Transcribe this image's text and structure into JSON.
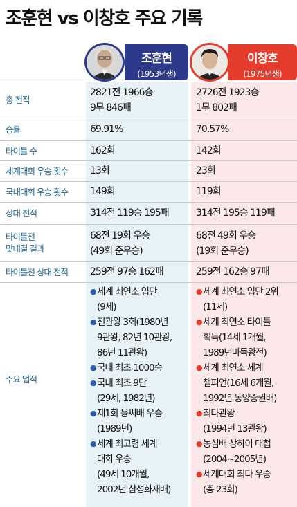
{
  "title": "조훈현 vs 이창호 주요 기록",
  "players": [
    {
      "name": "조훈현",
      "born": "(1953년생)",
      "photo": "portrait-icon",
      "color": "#2d3a8c"
    },
    {
      "name": "이창호",
      "born": "(1975년생)",
      "photo": "portrait-icon",
      "color": "#e63c2e"
    }
  ],
  "rows": [
    {
      "label": "총 전적",
      "p1": [
        "2821전 1966승",
        "9무 846패"
      ],
      "p2": [
        "2726전 1923승",
        "1무 802패"
      ]
    },
    {
      "label": "승률",
      "p1": [
        "69.91%"
      ],
      "p2": [
        "70.57%"
      ]
    },
    {
      "label": "타이틀 수",
      "p1": [
        "162회"
      ],
      "p2": [
        "142회"
      ]
    },
    {
      "label": "세계대회 우승 횟수",
      "p1": [
        "13회"
      ],
      "p2": [
        "23회"
      ]
    },
    {
      "label": "국내대회 우승 횟수",
      "p1": [
        "149회"
      ],
      "p2": [
        "119회"
      ]
    },
    {
      "label": "상대 전적",
      "p1": [
        "314전 119승 195패"
      ],
      "p2": [
        "314전 195승 119패"
      ]
    },
    {
      "label": [
        "타이틀전",
        "맞대결 결과"
      ],
      "p1": [
        "68전 19회 우승",
        "(49회 준우승)"
      ],
      "p2": [
        "68전 49회 우승",
        "(19회 준우승)"
      ]
    },
    {
      "label": "타이틀전 상대 전적",
      "p1": [
        "259전 97승 162패"
      ],
      "p2": [
        "259전 162승 97패"
      ]
    }
  ],
  "achievements": {
    "label": "주요 업적",
    "p1": [
      [
        "세계 최연소 입단",
        "(9세)"
      ],
      [
        "전관왕 3회(1980년",
        "9관왕, 82년 10관왕,",
        "86년 11관왕)"
      ],
      [
        "국내 최초 1000승"
      ],
      [
        "국내 최초 9단",
        "(29세, 1982년)"
      ],
      [
        "제1회 응씨배 우승",
        "(1989년)"
      ],
      [
        "세계 최고령 세계",
        "대회 우승",
        "(49세 10개월,",
        "2002년 삼성화재배)"
      ]
    ],
    "p2": [
      [
        "세계 최연소 입단 2위",
        "(11세)"
      ],
      [
        "세계 최연소 타이틀",
        "획득(14세 1개월,",
        "1989년바둑왕전)"
      ],
      [
        "세계 최연소 세계",
        "챔피언(16세 6개월,",
        "1992년 동양증권배)"
      ],
      [
        "최다관왕",
        "(1994년 13관왕)"
      ],
      [
        "농심배 상하이 대첩",
        "(2004~2005년)"
      ],
      [
        "세계대회 최다 우승",
        "(총 23회)"
      ]
    ]
  }
}
